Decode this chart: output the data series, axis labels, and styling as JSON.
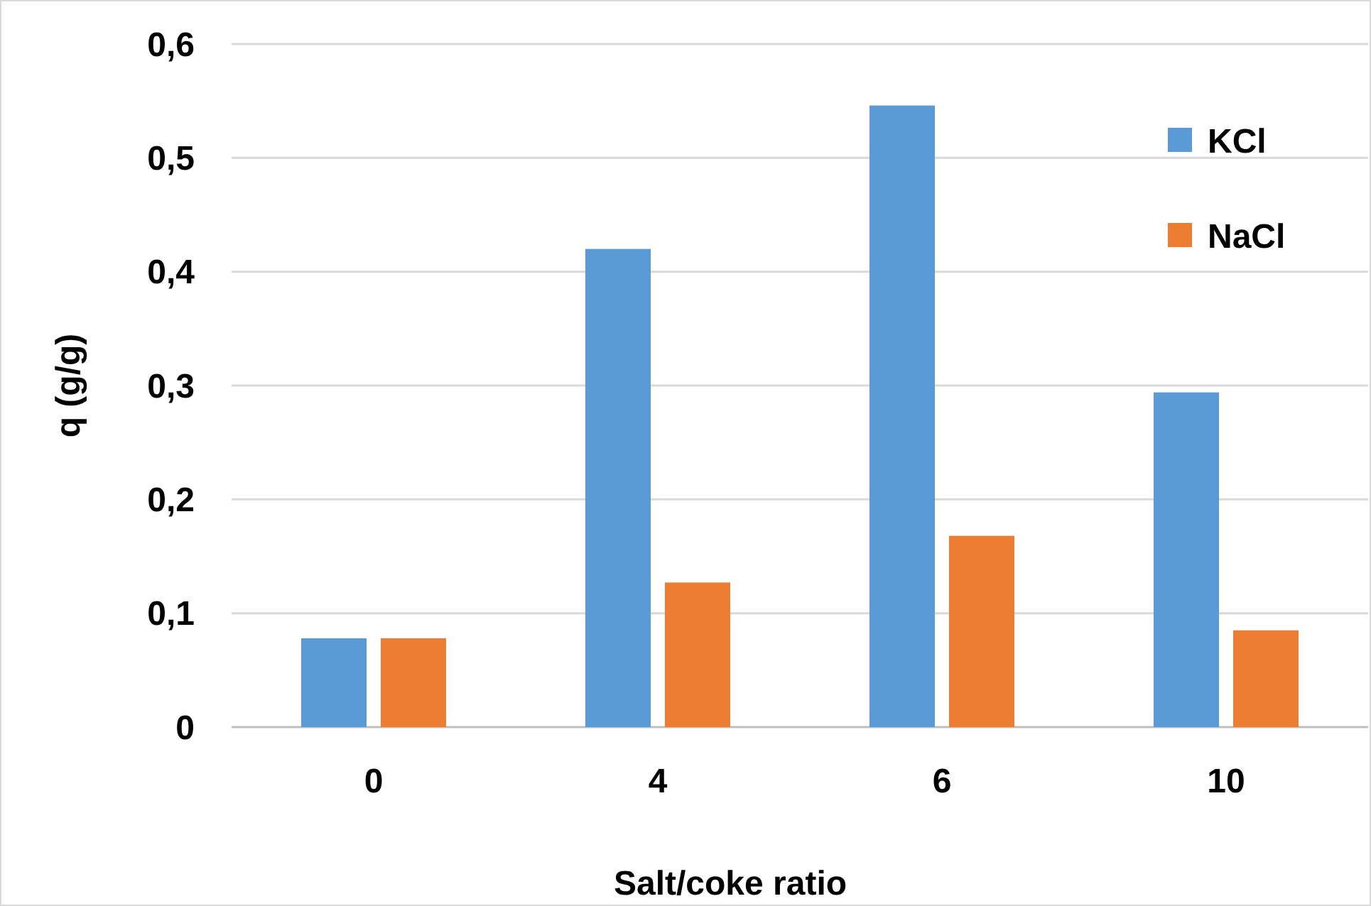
{
  "chart_data": {
    "type": "bar",
    "xlabel": "Salt/coke ratio",
    "ylabel": "q (g/g)",
    "categories": [
      "0",
      "4",
      "6",
      "10"
    ],
    "series": [
      {
        "name": "KCl",
        "color": "#5b9bd5",
        "values": [
          0.078,
          0.42,
          0.546,
          0.294
        ]
      },
      {
        "name": "NaCl",
        "color": "#ed7d31",
        "values": [
          0.078,
          0.127,
          0.168,
          0.085
        ]
      }
    ],
    "ylim": [
      0,
      0.6
    ],
    "yticks": [
      0,
      {
        "value": 0.1,
        "label": "0,1"
      },
      {
        "value": 0.2,
        "label": "0,2"
      },
      {
        "value": 0.3,
        "label": "0,3"
      },
      {
        "value": 0.4,
        "label": "0,4"
      },
      {
        "value": 0.5,
        "label": "0,5"
      },
      {
        "value": 0.6,
        "label": "0,6"
      }
    ],
    "grid": "y",
    "legend": "top right"
  }
}
